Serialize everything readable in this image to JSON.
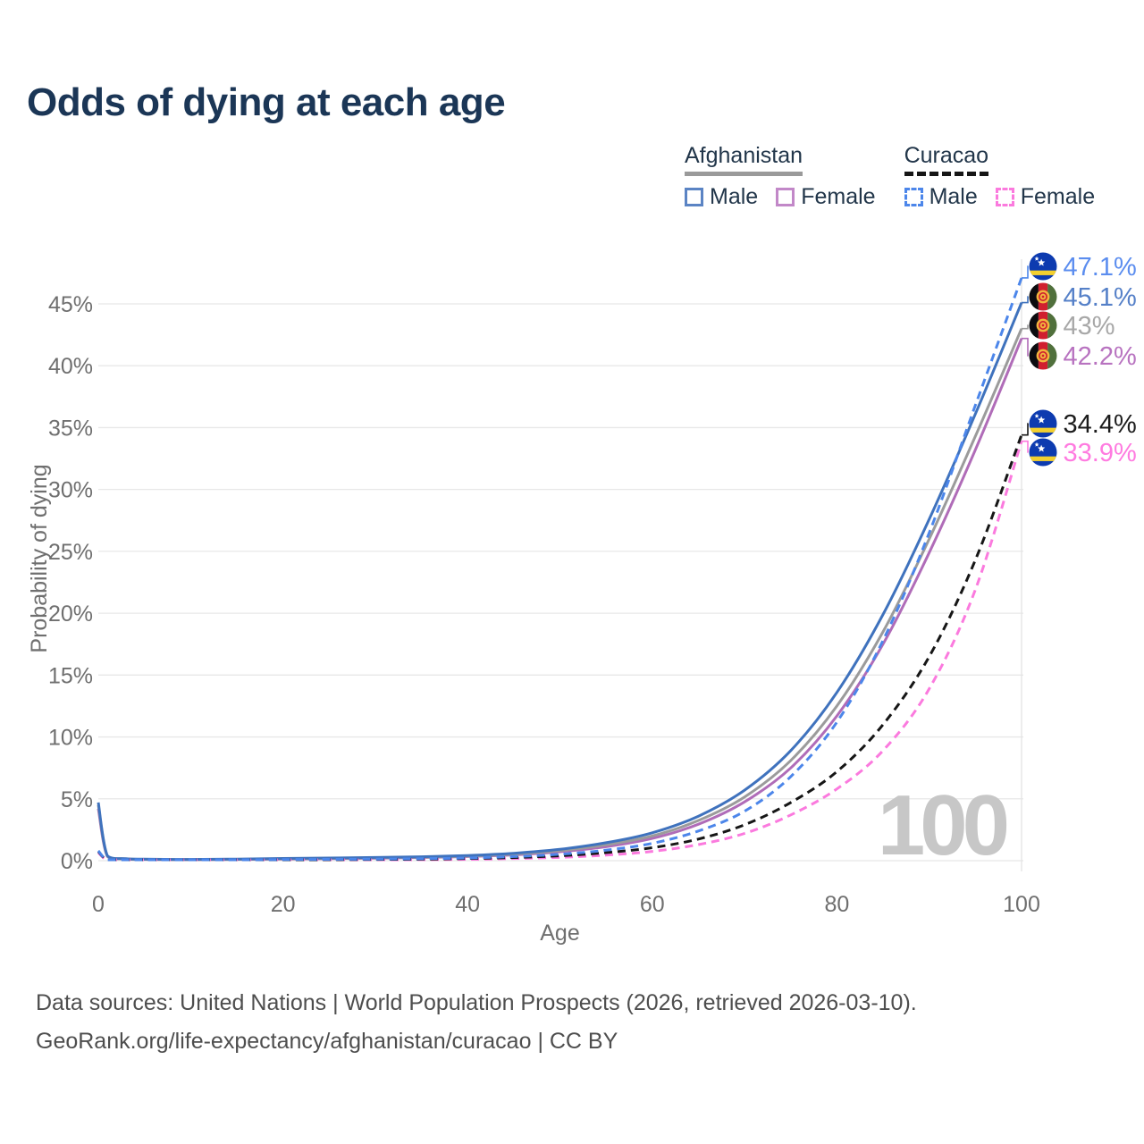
{
  "title": "Odds of dying at each age",
  "watermark": "100",
  "legend": {
    "groups": [
      {
        "name": "Afghanistan",
        "line_style": "solid",
        "line_color": "#9a9a9a",
        "items": [
          {
            "label": "Male",
            "color": "#5b84c4",
            "dashed": false
          },
          {
            "label": "Female",
            "color": "#c288c8",
            "dashed": false
          }
        ]
      },
      {
        "name": "Curacao",
        "line_style": "dashed",
        "line_color": "#161616",
        "items": [
          {
            "label": "Male",
            "color": "#4c86ea",
            "dashed": true
          },
          {
            "label": "Female",
            "color": "#fb7ade",
            "dashed": true
          }
        ]
      }
    ]
  },
  "footer": {
    "line1": "Data sources: United Nations | World Population Prospects (2026, retrieved 2026-03-10).",
    "line2": "GeoRank.org/life-expectancy/afghanistan/curacao | CC BY"
  },
  "chart_data": {
    "type": "line",
    "title": "Odds of dying at each age",
    "xlabel": "Age",
    "ylabel": "Probability of dying",
    "xlim": [
      0,
      100
    ],
    "ylim_percent": [
      0,
      47.5
    ],
    "grid": "horizontal",
    "legend_position": "top-right",
    "x_ticks": [
      0,
      20,
      40,
      60,
      80,
      100
    ],
    "y_tick_values": [
      0,
      5,
      10,
      15,
      20,
      25,
      30,
      35,
      40,
      45
    ],
    "y_tick_labels": [
      "0%",
      "5%",
      "10%",
      "15%",
      "20%",
      "25%",
      "30%",
      "35%",
      "40%",
      "45%"
    ],
    "age_marker": 100,
    "x": [
      0,
      1,
      3,
      5,
      10,
      15,
      20,
      25,
      30,
      35,
      40,
      45,
      50,
      55,
      60,
      65,
      70,
      75,
      80,
      85,
      90,
      95,
      100
    ],
    "series": [
      {
        "name": "Curacao Male",
        "country": "Curacao",
        "sex": "Male",
        "flag": "curacao",
        "color": "#4c86ea",
        "dashed": true,
        "end_label": "47.1%",
        "label_color": "#5b8def",
        "values": [
          0.8,
          0.06,
          0.03,
          0.02,
          0.02,
          0.05,
          0.09,
          0.11,
          0.13,
          0.16,
          0.22,
          0.33,
          0.52,
          0.85,
          1.4,
          2.4,
          4.0,
          6.8,
          11.2,
          17.8,
          26.5,
          36.8,
          47.1
        ]
      },
      {
        "name": "Afghanistan Male",
        "country": "Afghanistan",
        "sex": "Male",
        "flag": "afghanistan",
        "color": "#3f72bd",
        "dashed": false,
        "end_label": "45.1%",
        "label_color": "#5580c8",
        "values": [
          4.7,
          0.38,
          0.16,
          0.12,
          0.1,
          0.13,
          0.18,
          0.22,
          0.26,
          0.32,
          0.42,
          0.6,
          0.92,
          1.45,
          2.25,
          3.6,
          5.7,
          8.9,
          13.6,
          19.9,
          27.6,
          36.1,
          45.1
        ]
      },
      {
        "name": "Afghanistan Both sexes",
        "country": "Afghanistan",
        "sex": "Both",
        "flag": "afghanistan",
        "color": "#9b9b9b",
        "dashed": false,
        "end_label": "43%",
        "label_color": "#a8a8a8",
        "values": [
          4.5,
          0.35,
          0.14,
          0.11,
          0.09,
          0.11,
          0.15,
          0.19,
          0.23,
          0.28,
          0.37,
          0.53,
          0.81,
          1.28,
          2.0,
          3.25,
          5.15,
          8.1,
          12.5,
          18.5,
          26.0,
          34.3,
          43.0
        ]
      },
      {
        "name": "Afghanistan Female",
        "country": "Afghanistan",
        "sex": "Female",
        "flag": "afghanistan",
        "color": "#b06cb8",
        "dashed": false,
        "end_label": "42.2%",
        "label_color": "#b873c0",
        "values": [
          4.2,
          0.33,
          0.13,
          0.1,
          0.08,
          0.1,
          0.13,
          0.16,
          0.2,
          0.25,
          0.33,
          0.47,
          0.72,
          1.13,
          1.8,
          2.95,
          4.75,
          7.5,
          11.7,
          17.5,
          24.9,
          33.2,
          42.2
        ]
      },
      {
        "name": "Curacao Both sexes",
        "country": "Curacao",
        "sex": "Both",
        "flag": "curacao",
        "color": "#161616",
        "dashed": true,
        "end_label": "34.4%",
        "label_color": "#1c1c1c",
        "values": [
          0.75,
          0.05,
          0.025,
          0.018,
          0.015,
          0.04,
          0.06,
          0.08,
          0.1,
          0.12,
          0.17,
          0.25,
          0.4,
          0.65,
          1.05,
          1.75,
          2.9,
          4.7,
          7.2,
          11.0,
          16.5,
          24.3,
          34.4
        ]
      },
      {
        "name": "Curacao Female",
        "country": "Curacao",
        "sex": "Female",
        "flag": "curacao",
        "color": "#fb7ade",
        "dashed": true,
        "end_label": "33.9%",
        "label_color": "#ff7be0",
        "values": [
          0.65,
          0.045,
          0.02,
          0.015,
          0.012,
          0.03,
          0.04,
          0.05,
          0.06,
          0.08,
          0.11,
          0.17,
          0.27,
          0.45,
          0.75,
          1.3,
          2.2,
          3.7,
          5.8,
          8.9,
          13.9,
          21.9,
          33.9
        ]
      }
    ]
  }
}
